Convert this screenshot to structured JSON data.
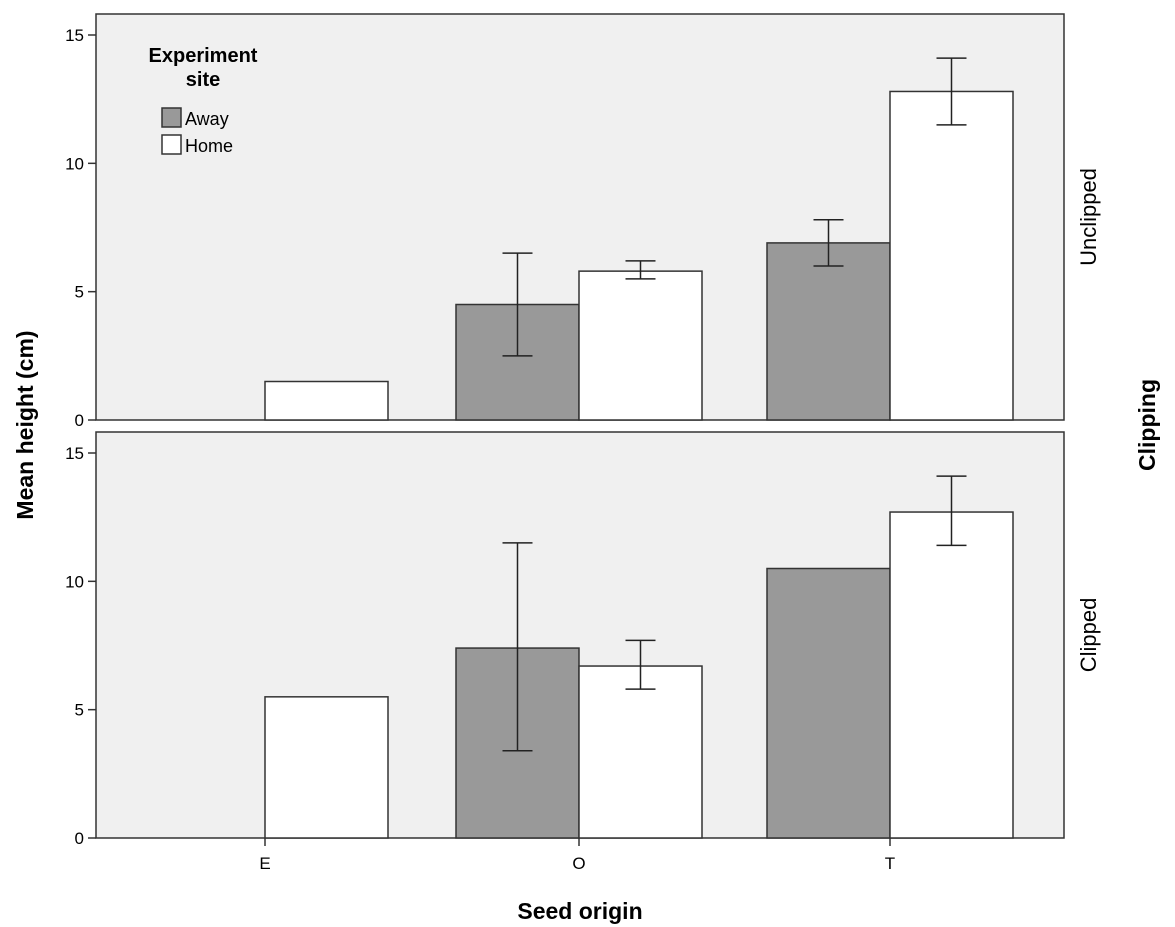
{
  "chart_data": {
    "type": "bar",
    "xlabel": "Seed origin",
    "ylabel": "Mean height (cm)",
    "facet_label": "Clipping",
    "categories": [
      "E",
      "O",
      "T"
    ],
    "ylim": [
      0,
      15
    ],
    "yticks": [
      0,
      5,
      10,
      15
    ],
    "legend": {
      "title_line1": "Experiment",
      "title_line2": "site",
      "position": "top-left",
      "entries": [
        {
          "name": "Away",
          "color": "#999999"
        },
        {
          "name": "Home",
          "color": "#ffffff"
        }
      ]
    },
    "panels": [
      {
        "label": "Unclipped",
        "series": [
          {
            "name": "Away",
            "values": [
              null,
              4.5,
              6.9
            ],
            "err_low": [
              null,
              2.5,
              6.0
            ],
            "err_high": [
              null,
              6.5,
              7.8
            ]
          },
          {
            "name": "Home",
            "values": [
              1.5,
              5.8,
              12.8
            ],
            "err_low": [
              null,
              5.5,
              11.5
            ],
            "err_high": [
              null,
              6.2,
              14.1
            ]
          }
        ]
      },
      {
        "label": "Clipped",
        "series": [
          {
            "name": "Away",
            "values": [
              null,
              7.4,
              10.5
            ],
            "err_low": [
              null,
              3.4,
              null
            ],
            "err_high": [
              null,
              11.5,
              null
            ]
          },
          {
            "name": "Home",
            "values": [
              5.5,
              6.7,
              12.7
            ],
            "err_low": [
              null,
              5.8,
              11.4
            ],
            "err_high": [
              null,
              7.7,
              14.1
            ]
          }
        ]
      }
    ],
    "colors": {
      "panel_bg": "#f0f0f0",
      "away": "#999999",
      "home": "#ffffff",
      "stroke": "#333333"
    }
  }
}
